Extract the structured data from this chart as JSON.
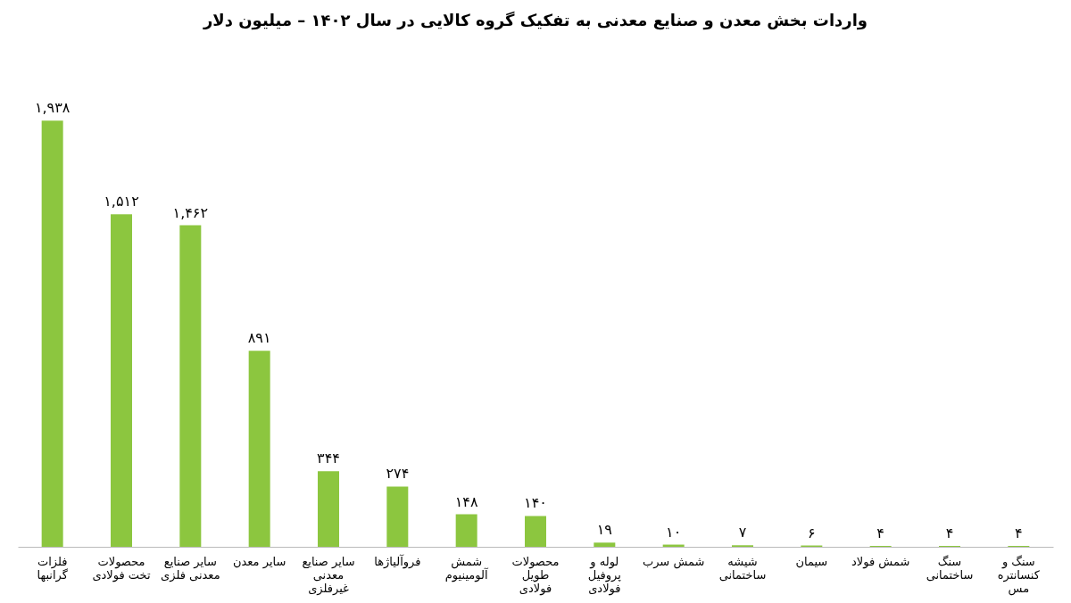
{
  "chart_data": {
    "type": "bar",
    "title": "واردات بخش معدن و صنایع معدنی به تفکیک گروه کالایی در سال ۱۴۰۲ – میلیون دلار",
    "categories": [
      "فلزات\nگرانبها",
      "محصولات\nتخت فولادی",
      "سایر صنایع\nمعدنی فلزی",
      "سایر معدن",
      "سایر صنایع\nمعدنی\nغیرفلزی",
      "فروآلیاژها",
      "شمش\nآلومینیوم",
      "محصولات\nطویل\nفولادی",
      "لوله و\nپروفیل\nفولادی",
      "شمش سرب",
      "شیشه\nساختمانی",
      "سیمان",
      "شمش فولاد",
      "سنگ\nساختمانی",
      "سنگ و\nکنسانتره\nمس"
    ],
    "values": [
      1938,
      1512,
      1462,
      891,
      344,
      274,
      148,
      140,
      19,
      10,
      7,
      6,
      4,
      4,
      4
    ],
    "value_labels": [
      "۱,۹۳۸",
      "۱,۵۱۲",
      "۱,۴۶۲",
      "۸۹۱",
      "۳۴۴",
      "۲۷۴",
      "۱۴۸",
      "۱۴۰",
      "۱۹",
      "۱۰",
      "۷",
      "۶",
      "۴",
      "۴",
      "۴"
    ],
    "color": "#8cc63f"
  }
}
